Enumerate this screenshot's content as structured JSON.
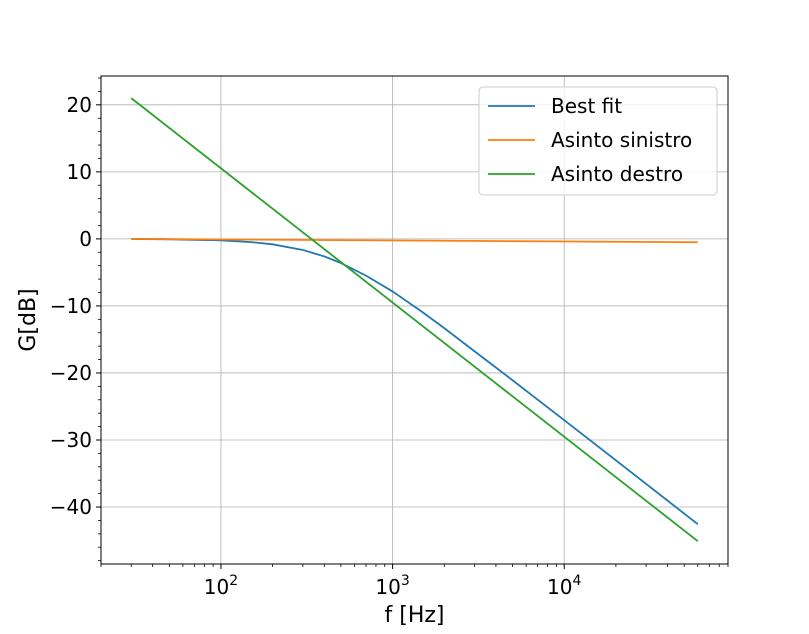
{
  "chart_data": {
    "type": "line",
    "xlabel": "f [Hz]",
    "ylabel": "G[dB]",
    "xscale": "log",
    "xlim": [
      20,
      90000
    ],
    "ylim": [
      -48.5,
      24.3
    ],
    "x_ticks": [
      {
        "value": 100,
        "base": "10",
        "exp": "2"
      },
      {
        "value": 1000,
        "base": "10",
        "exp": "3"
      },
      {
        "value": 10000,
        "base": "10",
        "exp": "4"
      }
    ],
    "y_ticks": [
      {
        "value": 20,
        "label": "20"
      },
      {
        "value": 10,
        "label": "10"
      },
      {
        "value": 0,
        "label": "0"
      },
      {
        "value": -10,
        "label": "−10"
      },
      {
        "value": -20,
        "label": "−20"
      },
      {
        "value": -30,
        "label": "−30"
      },
      {
        "value": -40,
        "label": "−40"
      }
    ],
    "grid": true,
    "legend_position": "top-right",
    "series": [
      {
        "name": "Best fit",
        "color": "#1f77b4",
        "x": [
          30,
          50,
          100,
          150,
          200,
          300,
          400,
          500,
          700,
          1000,
          1500,
          2000,
          3000,
          5000,
          10000,
          20000,
          60000
        ],
        "y": [
          -0.02,
          -0.06,
          -0.21,
          -0.48,
          -0.81,
          -1.65,
          -2.62,
          -3.6,
          -5.48,
          -7.84,
          -10.96,
          -13.31,
          -16.76,
          -21.09,
          -27.04,
          -33.03,
          -42.56
        ]
      },
      {
        "name": "Asinto sinistro",
        "color": "#ff7f0e",
        "x": [
          30,
          60000
        ],
        "y": [
          0.0,
          -0.5
        ]
      },
      {
        "name": "Asinto destro",
        "color": "#2ca02c",
        "x": [
          30,
          60000
        ],
        "y": [
          21.0,
          -45.1
        ]
      }
    ]
  }
}
